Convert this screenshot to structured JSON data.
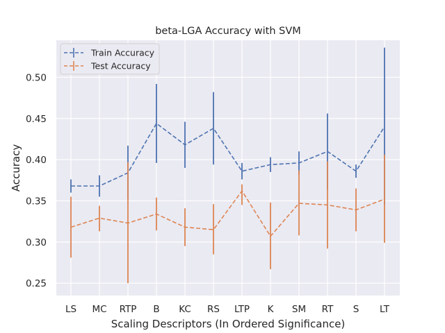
{
  "chart_data": {
    "type": "line",
    "title": "beta-LGA Accuracy with SVM",
    "xlabel": "Scaling Descriptors (In Ordered Significance)",
    "ylabel": "Accuracy",
    "categories": [
      "LS",
      "MC",
      "RTP",
      "B",
      "KC",
      "RS",
      "LTP",
      "K",
      "SM",
      "RT",
      "S",
      "LT"
    ],
    "yticks": [
      "0.25",
      "0.30",
      "0.35",
      "0.40",
      "0.45",
      "0.50"
    ],
    "ylim": [
      0.235,
      0.545
    ],
    "grid": true,
    "legend_position": "top-left",
    "series": [
      {
        "name": "Train Accuracy",
        "color": "#4c72b0",
        "values": [
          0.368,
          0.368,
          0.384,
          0.444,
          0.418,
          0.438,
          0.386,
          0.394,
          0.396,
          0.41,
          0.386,
          0.44
        ],
        "err_low": [
          0.36,
          0.355,
          0.352,
          0.396,
          0.39,
          0.394,
          0.376,
          0.385,
          0.382,
          0.364,
          0.378,
          0.345
        ],
        "err_high": [
          0.376,
          0.381,
          0.417,
          0.492,
          0.446,
          0.482,
          0.396,
          0.403,
          0.41,
          0.456,
          0.394,
          0.536
        ]
      },
      {
        "name": "Test Accuracy",
        "color": "#dd8452",
        "values": [
          0.318,
          0.329,
          0.323,
          0.334,
          0.318,
          0.315,
          0.362,
          0.307,
          0.347,
          0.345,
          0.339,
          0.352
        ],
        "err_low": [
          0.281,
          0.313,
          0.25,
          0.314,
          0.295,
          0.285,
          0.345,
          0.267,
          0.308,
          0.292,
          0.313,
          0.299
        ],
        "err_high": [
          0.355,
          0.344,
          0.397,
          0.354,
          0.341,
          0.346,
          0.37,
          0.348,
          0.387,
          0.398,
          0.365,
          0.406
        ]
      }
    ]
  }
}
